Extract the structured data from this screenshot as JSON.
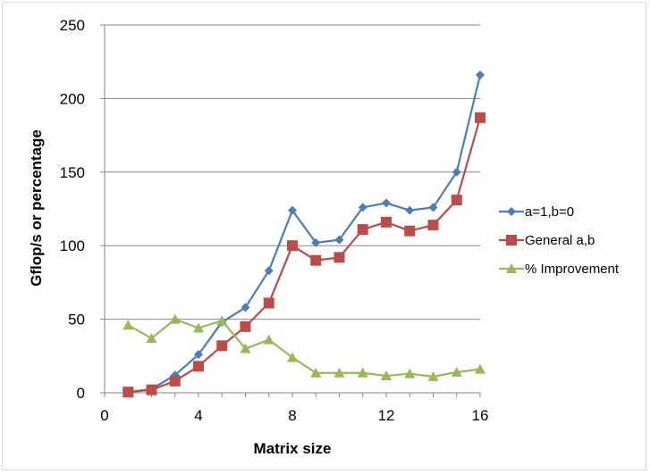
{
  "chart_data": {
    "type": "line",
    "title": "",
    "xlabel": "Matrix size",
    "ylabel": "Gflop/s or percentage",
    "xlim": [
      0,
      16
    ],
    "ylim": [
      0,
      250
    ],
    "x_ticks": [
      0,
      4,
      8,
      12,
      16
    ],
    "y_ticks": [
      0,
      50,
      100,
      150,
      200,
      250
    ],
    "grid": "horizontal",
    "legend_position": "right",
    "x": [
      1,
      2,
      3,
      4,
      5,
      6,
      7,
      8,
      9,
      10,
      11,
      12,
      13,
      14,
      15,
      16
    ],
    "series": [
      {
        "name": "a=1,b=0",
        "color": "#4a7ebb",
        "marker": "diamond",
        "values": [
          0.5,
          2.5,
          12,
          26,
          48,
          58,
          83,
          124,
          102,
          104,
          126,
          129,
          124,
          126,
          150,
          216
        ]
      },
      {
        "name": "General a,b",
        "color": "#be4b48",
        "marker": "square",
        "values": [
          0.5,
          2,
          8,
          18,
          32,
          45,
          61,
          100,
          90,
          92,
          111,
          116,
          110,
          114,
          131,
          187
        ]
      },
      {
        "name": "% Improvement",
        "color": "#98b954",
        "marker": "triangle",
        "values": [
          46,
          37,
          50,
          44,
          49,
          30,
          36,
          24,
          13.5,
          13.5,
          13.5,
          11.5,
          13,
          11,
          14,
          16
        ]
      }
    ]
  }
}
